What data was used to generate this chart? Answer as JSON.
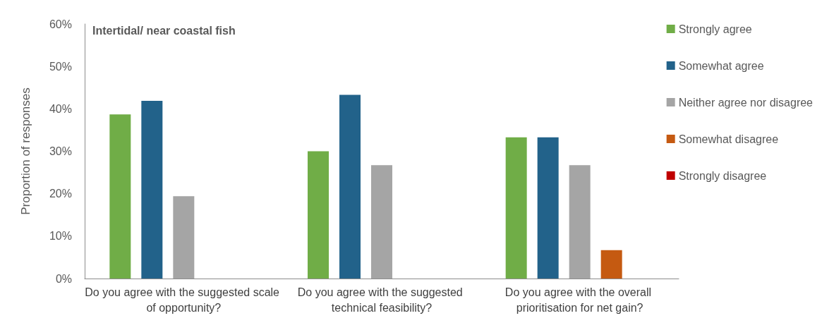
{
  "chart_data": {
    "type": "bar",
    "title": "Intertidal/ near coastal fish",
    "ylabel": "Proportion of responses",
    "categories": [
      "Do you agree with the suggested scale of opportunity?",
      "Do you agree with the suggested technical feasibility?",
      "Do you agree with the overall prioritisation for net gain?"
    ],
    "series": [
      {
        "name": "Strongly agree",
        "color": "#70ad47",
        "values": [
          38.7,
          30,
          33.3
        ]
      },
      {
        "name": "Somewhat agree",
        "color": "#22628a",
        "values": [
          41.9,
          43.3,
          33.3
        ]
      },
      {
        "name": "Neither agree nor disagree",
        "color": "#a5a5a5",
        "values": [
          19.4,
          26.7,
          26.7
        ]
      },
      {
        "name": "Somewhat disagree",
        "color": "#c55a11",
        "values": [
          0,
          0,
          6.7
        ]
      },
      {
        "name": "Strongly disagree",
        "color": "#c00000",
        "values": [
          0,
          0,
          0
        ]
      }
    ],
    "ylim": [
      0,
      60
    ],
    "yticks": [
      {
        "value": 0,
        "label": "0%"
      },
      {
        "value": 10,
        "label": "10%"
      },
      {
        "value": 20,
        "label": "20%"
      },
      {
        "value": 30,
        "label": "30%"
      },
      {
        "value": 40,
        "label": "40%"
      },
      {
        "value": 50,
        "label": "50%"
      },
      {
        "value": 60,
        "label": "60%"
      }
    ],
    "grid": false,
    "legend": "right"
  }
}
